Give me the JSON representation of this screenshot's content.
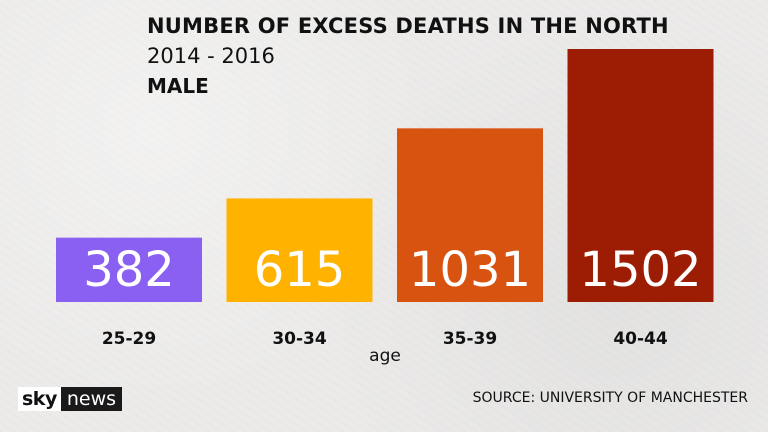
{
  "header": {
    "title": "NUMBER OF EXCESS DEATHS IN THE NORTH",
    "years": "2014 - 2016",
    "group": "MALE"
  },
  "chart_data": {
    "type": "bar",
    "categories": [
      "25-29",
      "30-34",
      "35-39",
      "40-44"
    ],
    "values": [
      382,
      615,
      1031,
      1502
    ],
    "value_labels": [
      "382",
      "615",
      "1031",
      "1502"
    ],
    "colors": [
      "#8a60f3",
      "#ffb300",
      "#d95310",
      "#9c1d03"
    ],
    "title": "NUMBER OF EXCESS DEATHS IN THE NORTH",
    "subtitle": "2014 - 2016",
    "xlabel": "age",
    "ylabel": "",
    "ylim": [
      0,
      1502
    ],
    "grid": false,
    "legend": "none"
  },
  "footer": {
    "logo_sky": "sky",
    "logo_news": "news",
    "source": "SOURCE: UNIVERSITY OF MANCHESTER"
  }
}
